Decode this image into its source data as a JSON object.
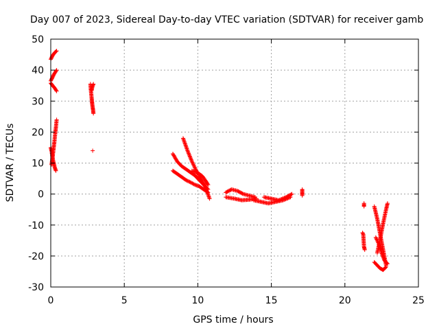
{
  "chart_data": {
    "type": "scatter",
    "title": "Day 007 of 2023, Sidereal Day-to-day VTEC variation (SDTVAR) for receiver gamb",
    "xlabel": "GPS time / hours",
    "ylabel": "SDTVAR / TECUs",
    "xlim": [
      0,
      25
    ],
    "ylim": [
      -30,
      50
    ],
    "xticks": [
      0,
      5,
      10,
      15,
      20,
      25
    ],
    "yticks": [
      -30,
      -20,
      -10,
      0,
      10,
      20,
      30,
      40,
      50
    ],
    "xtick_labels": [
      "0",
      "5",
      "10",
      "15",
      "20",
      "25"
    ],
    "ytick_labels": [
      "-30",
      "-20",
      "-10",
      "0",
      "10",
      "20",
      "30",
      "40",
      "50"
    ],
    "grid": true,
    "marker": "+",
    "series_color": "#ff0000",
    "tracks": [
      {
        "x": [
          0.0,
          0.1,
          0.2,
          0.3,
          0.4
        ],
        "y": [
          43.5,
          44.5,
          45.2,
          45.8,
          46.2
        ]
      },
      {
        "x": [
          0.0,
          0.1,
          0.2,
          0.3,
          0.4
        ],
        "y": [
          36.5,
          37.5,
          38.5,
          39.3,
          40.0
        ]
      },
      {
        "x": [
          0.0,
          0.1,
          0.2,
          0.3,
          0.4
        ],
        "y": [
          35.8,
          35.2,
          34.6,
          34.0,
          33.2
        ]
      },
      {
        "x": [
          0.0,
          0.05,
          0.1,
          0.15,
          0.2,
          0.25,
          0.3,
          0.35
        ],
        "y": [
          15.0,
          14.0,
          12.5,
          11.0,
          10.0,
          9.0,
          8.2,
          7.5
        ]
      },
      {
        "x": [
          0.05,
          0.1,
          0.15,
          0.2,
          0.25,
          0.3,
          0.35,
          0.4
        ],
        "y": [
          9.5,
          11.0,
          13.0,
          15.0,
          17.0,
          19.5,
          21.5,
          24.0
        ]
      },
      {
        "x": [
          2.7,
          2.72,
          2.75,
          2.78,
          2.8,
          2.82,
          2.85,
          2.88,
          2.9
        ],
        "y": [
          35.5,
          34.0,
          32.5,
          31.0,
          30.0,
          29.0,
          28.0,
          27.0,
          26.0
        ]
      },
      {
        "x": [
          2.78,
          2.82,
          2.86,
          2.9
        ],
        "y": [
          33.5,
          34.5,
          35.0,
          35.5
        ]
      },
      {
        "x": [
          2.85
        ],
        "y": [
          14.0
        ]
      },
      {
        "x": [
          8.3,
          8.6,
          8.9,
          9.2,
          9.5,
          9.8,
          10.1,
          10.4,
          10.7
        ],
        "y": [
          13.0,
          10.5,
          9.0,
          8.0,
          7.0,
          6.0,
          4.5,
          3.0,
          1.5
        ]
      },
      {
        "x": [
          8.3,
          8.6,
          8.9,
          9.2,
          9.5,
          9.8,
          10.1,
          10.4,
          10.7
        ],
        "y": [
          7.5,
          6.5,
          5.5,
          4.5,
          3.8,
          3.0,
          2.5,
          1.5,
          0.5
        ]
      },
      {
        "x": [
          9.0,
          9.3,
          9.6,
          9.9,
          10.2,
          10.5,
          10.8
        ],
        "y": [
          18.0,
          14.0,
          10.5,
          7.5,
          5.0,
          2.5,
          -1.5
        ]
      },
      {
        "x": [
          9.6,
          9.9,
          10.1,
          10.3,
          10.5,
          10.7
        ],
        "y": [
          7.5,
          7.0,
          6.5,
          5.8,
          4.5,
          3.0
        ]
      },
      {
        "x": [
          11.9,
          12.3,
          12.7,
          13.1,
          13.5,
          13.9
        ],
        "y": [
          0.5,
          1.5,
          1.0,
          0.0,
          -0.5,
          -1.0
        ]
      },
      {
        "x": [
          11.9,
          12.5,
          13.0,
          13.5,
          14.0
        ],
        "y": [
          -1.0,
          -1.5,
          -2.0,
          -1.8,
          -1.5
        ]
      },
      {
        "x": [
          13.8,
          14.3,
          14.8,
          15.3,
          15.8,
          16.3
        ],
        "y": [
          -2.0,
          -2.5,
          -3.0,
          -2.5,
          -2.0,
          -1.0
        ]
      },
      {
        "x": [
          14.5,
          15.0,
          15.5,
          16.0,
          16.4
        ],
        "y": [
          -1.0,
          -1.5,
          -2.0,
          -1.0,
          0.0
        ]
      },
      {
        "x": [
          17.1,
          17.1,
          17.1
        ],
        "y": [
          1.5,
          0.5,
          -0.5
        ]
      },
      {
        "x": [
          21.3,
          21.3
        ],
        "y": [
          -3.0,
          -4.0
        ]
      },
      {
        "x": [
          21.2,
          21.25,
          21.3,
          21.35
        ],
        "y": [
          -12.5,
          -13.0,
          -17.0,
          -18.0
        ]
      },
      {
        "x": [
          22.0,
          22.2,
          22.4,
          22.6,
          22.8
        ],
        "y": [
          -4.0,
          -8.0,
          -13.0,
          -18.0,
          -23.0
        ]
      },
      {
        "x": [
          22.2,
          22.4,
          22.6,
          22.8,
          22.9
        ],
        "y": [
          -19.0,
          -14.5,
          -9.5,
          -5.0,
          -3.0
        ]
      },
      {
        "x": [
          22.1,
          22.3,
          22.5,
          22.7,
          22.9
        ],
        "y": [
          -14.0,
          -16.0,
          -19.0,
          -21.5,
          -22.5
        ]
      },
      {
        "x": [
          22.0,
          22.2,
          22.4,
          22.6,
          22.8
        ],
        "y": [
          -22.0,
          -23.0,
          -24.0,
          -24.5,
          -23.5
        ]
      }
    ]
  }
}
